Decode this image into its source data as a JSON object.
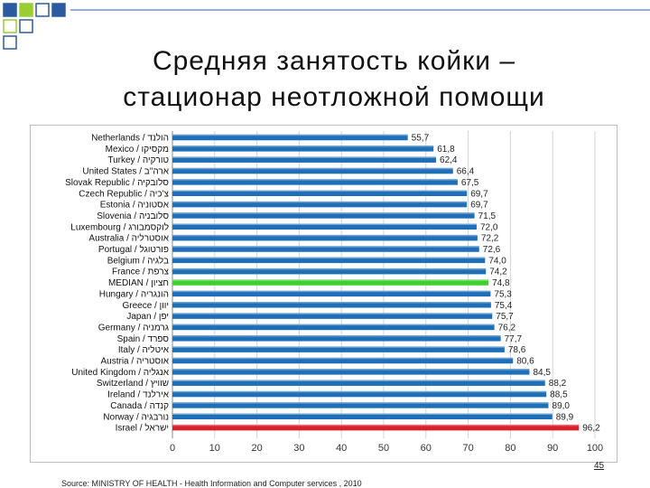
{
  "slide": {
    "title_line1": "Средняя занятость койки –",
    "title_line2": "стационар неотложной помощи",
    "source": "Source: MINISTRY OF HEALTH - Health Information and Computer services , 2010",
    "page_number": "45"
  },
  "colors": {
    "bar_default": "#1f6fb8",
    "bar_median": "#3fcf2f",
    "bar_highlight": "#d9212b",
    "deco_blue": "#2c5aa0",
    "deco_green": "#9acd32"
  },
  "chart_data": {
    "type": "bar",
    "orientation": "horizontal",
    "categories": [
      "Netherlands / הולנד",
      "Mexico / מקסיקו",
      "Turkey / טורקיה",
      "United States / ארה\"ב",
      "Slovak Republic / סלובקיה",
      "Czech Republic / צ'כיה",
      "Estonia / אסטוניה",
      "Slovenia / סלובניה",
      "Luxembourg / לוקסמבורג",
      "Australia / אוסטרליה",
      "Portugal / פורטוגל",
      "Belgium / בלגיה",
      "France / צרפת",
      "MEDIAN / חציון",
      "Hungary / הונגריה",
      "Greece / יוון",
      "Japan / יפן",
      "Germany / גרמניה",
      "Spain / ספרד",
      "Italy / איטליה",
      "Austria / אוסטריה",
      "United Kingdom / אנגליה",
      "Switzerland / שוויץ",
      "Ireland / אירלנד",
      "Canada / קנדה",
      "Norway / נורבגיה",
      "Israel / ישראל"
    ],
    "value_labels": [
      "55,7",
      "61,8",
      "62,4",
      "66,4",
      "67,5",
      "69,7",
      "69,7",
      "71,5",
      "72,0",
      "72,2",
      "72,6",
      "74,0",
      "74,2",
      "74,8",
      "75,3",
      "75,4",
      "75,7",
      "76,2",
      "77,7",
      "78,6",
      "80,6",
      "84,5",
      "88,2",
      "88,5",
      "89,0",
      "89,9",
      "96,2"
    ],
    "values": [
      55.7,
      61.8,
      62.4,
      66.4,
      67.5,
      69.7,
      69.7,
      71.5,
      72.0,
      72.2,
      72.6,
      74.0,
      74.2,
      74.8,
      75.3,
      75.4,
      75.7,
      76.2,
      77.7,
      78.6,
      80.6,
      84.5,
      88.2,
      88.5,
      89.0,
      89.9,
      96.2
    ],
    "highlight": {
      "MEDIAN / חציון": "median",
      "Israel / ישראל": "highlight"
    },
    "xlim": [
      0,
      100
    ],
    "xticks": [
      0,
      10,
      20,
      30,
      40,
      50,
      60,
      70,
      80,
      90,
      100
    ],
    "grid": "vertical"
  }
}
